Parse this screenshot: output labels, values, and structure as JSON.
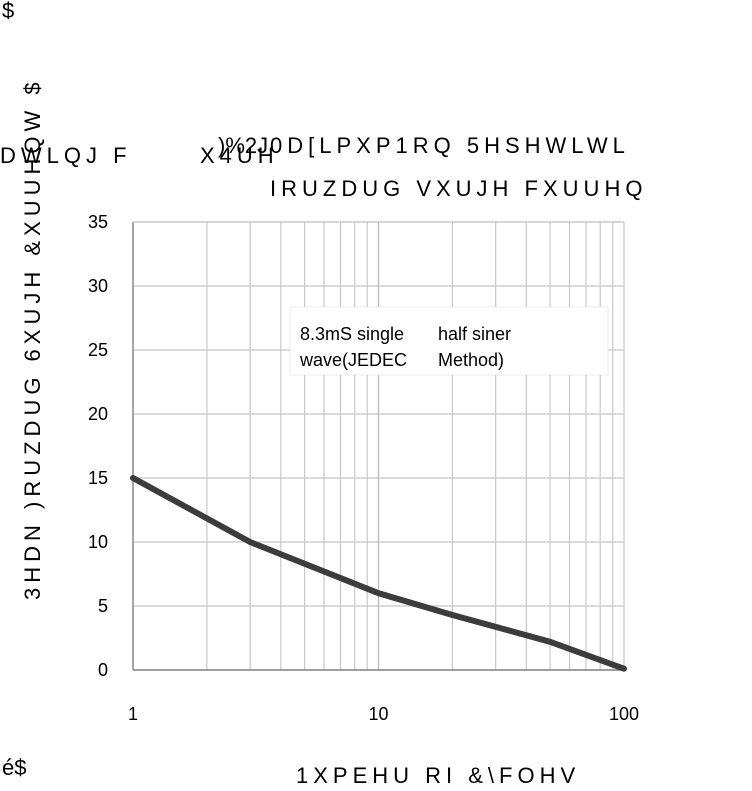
{
  "chart_data": {
    "type": "line",
    "title_line1": ")%2J",
    "title_line1b": "0D[LPXP1RQ 5HSHWLWL",
    "title_line2": "IRUZDUG VXUJH FXUUHQ",
    "left_title_fragment": "DWLQJ F",
    "left_title_fragment2": "X4UH",
    "xlabel": "1XPEHU RI &\\FOHV",
    "ylabel": "3HDN )RUZDUG 6XUJH &XUUHQW $",
    "x_unit_label": "é$",
    "x_scale": "log",
    "xlim": [
      1,
      100
    ],
    "ylim": [
      0,
      35
    ],
    "x_ticks": [
      "1",
      "10",
      "100"
    ],
    "y_ticks": [
      "0",
      "5",
      "10",
      "15",
      "20",
      "25",
      "30",
      "35"
    ],
    "grid": true,
    "annotation": {
      "line1_part1": "8.3mS single",
      "line1_part2": "half siner",
      "line2_part1": "wave(JEDEC",
      "line2_part2": "Method)"
    },
    "series": [
      {
        "x": [
          1,
          3,
          10,
          20,
          50,
          100
        ],
        "y": [
          15,
          10,
          6,
          4.3,
          2.2,
          0.1
        ],
        "color": "#3c3c3c"
      }
    ]
  }
}
